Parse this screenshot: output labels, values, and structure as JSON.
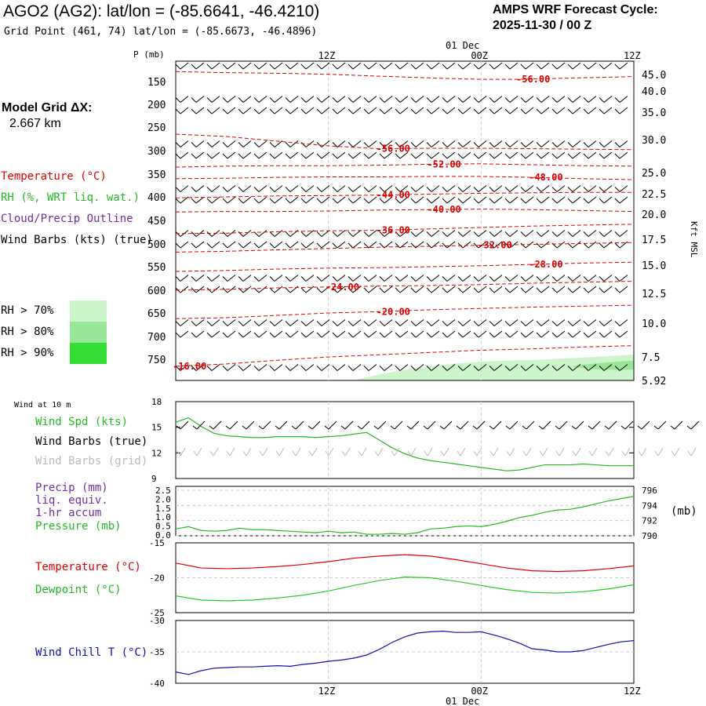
{
  "header": {
    "title": "AGO2 (AG2):  lat/lon = (-85.6641, -46.4210)",
    "subtitle": "Grid Point (461, 74) lat/lon = (-85.6673, -46.4896)",
    "cycle_line1": "AMPS WRF Forecast Cycle:",
    "cycle_line2": "2025-11-30 / 00  Z",
    "grid_dx_line1": "Model Grid ΔX:",
    "grid_dx_line2": "2.667 km"
  },
  "legend": {
    "temperature": "Temperature (°C)",
    "rh": "RH (%, WRT liq. wat.)",
    "cloud": "Cloud/Precip Outline",
    "wind": "Wind Barbs (kts) (true)",
    "rh70": "RH > 70%",
    "rh80": "RH > 80%",
    "rh90": "RH > 90%"
  },
  "colors": {
    "temperature": "#e00000",
    "rh": "#22bb22",
    "cloud": "#7030a0",
    "rh70": "#ccf5cc",
    "rh80": "#99e699",
    "rh90": "#33dd33",
    "dewpoint": "#22cc22",
    "windchill": "#1010aa",
    "grid_barbs": "#bbbbbb"
  },
  "chart_data": [
    {
      "type": "line",
      "id": "upper-air",
      "ylabel": "P (mb)",
      "y2label": "Kft MSL",
      "time_labels": [
        "12Z",
        "00Z",
        "12Z"
      ],
      "date_label": "01 Dec",
      "pressure_ticks": [
        150,
        200,
        250,
        300,
        350,
        400,
        450,
        500,
        550,
        600,
        650,
        700,
        750
      ],
      "height_ticks": [
        "45.0",
        "40.0",
        "35.0",
        "30.0",
        "25.0",
        "22.5",
        "20.0",
        "17.5",
        "15.0",
        "12.5",
        "10.0",
        "7.5",
        "5.92"
      ],
      "isotherm_labels": [
        "-56.00",
        "-56.00",
        "-52.00",
        "-48.00",
        "-44.00",
        "-40.00",
        "-36.00",
        "-32.00",
        "-28.00",
        "-24.00",
        "-20.00",
        "-16.00"
      ],
      "isotherms": [
        {
          "label": "-56.00",
          "x": [
            0,
            3,
            6,
            9,
            12,
            15,
            18,
            21,
            24,
            27,
            30,
            33,
            36
          ],
          "p": [
            128,
            130,
            131,
            132,
            134,
            137,
            140,
            143,
            145,
            145,
            143,
            141,
            139
          ]
        },
        {
          "label": "-56.00",
          "x": [
            0,
            4,
            8,
            12,
            16,
            20,
            24,
            28,
            32,
            36
          ],
          "p": [
            265,
            270,
            280,
            290,
            296,
            295,
            295,
            296,
            297,
            298
          ]
        },
        {
          "label": "-52.00",
          "x": [
            0,
            4,
            8,
            12,
            16,
            20,
            24,
            28,
            32,
            36
          ],
          "p": [
            335,
            333,
            332,
            332,
            331,
            329,
            328,
            330,
            332,
            333
          ]
        },
        {
          "label": "-48.00",
          "x": [
            0,
            4,
            8,
            12,
            16,
            20,
            24,
            28,
            32,
            36
          ],
          "p": [
            360,
            359,
            357,
            356,
            356,
            355,
            355,
            357,
            360,
            362
          ]
        },
        {
          "label": "-44.00",
          "x": [
            0,
            4,
            8,
            12,
            16,
            20,
            24,
            28,
            32,
            36
          ],
          "p": [
            402,
            400,
            398,
            397,
            396,
            394,
            392,
            391,
            390,
            390
          ]
        },
        {
          "label": "-40.00",
          "x": [
            0,
            4,
            8,
            12,
            16,
            20,
            24,
            28,
            32,
            36
          ],
          "p": [
            432,
            431,
            431,
            430,
            428,
            427,
            426,
            427,
            429,
            431
          ]
        },
        {
          "label": "-36.00",
          "x": [
            0,
            4,
            8,
            12,
            16,
            20,
            24,
            28,
            32,
            36
          ],
          "p": [
            478,
            477,
            474,
            472,
            471,
            468,
            465,
            462,
            460,
            458
          ]
        },
        {
          "label": "-32.00",
          "x": [
            0,
            4,
            8,
            12,
            16,
            20,
            24,
            28,
            32,
            36
          ],
          "p": [
            518,
            516,
            513,
            510,
            507,
            505,
            503,
            501,
            499,
            497
          ]
        },
        {
          "label": "-28.00",
          "x": [
            0,
            4,
            8,
            12,
            16,
            20,
            24,
            28,
            32,
            36
          ],
          "p": [
            560,
            558,
            555,
            553,
            552,
            550,
            548,
            545,
            542,
            540
          ]
        },
        {
          "label": "-24.00",
          "x": [
            0,
            4,
            8,
            12,
            16,
            20,
            24,
            28,
            32,
            36
          ],
          "p": [
            600,
            598,
            595,
            593,
            591,
            590,
            588,
            585,
            583,
            581
          ]
        },
        {
          "label": "-20.00",
          "x": [
            0,
            4,
            8,
            12,
            16,
            20,
            24,
            28,
            32,
            36
          ],
          "p": [
            662,
            660,
            655,
            650,
            647,
            643,
            640,
            637,
            635,
            633
          ]
        },
        {
          "label": "-16.00",
          "x": [
            0,
            4,
            8,
            12,
            16,
            20,
            24,
            28,
            32,
            36
          ],
          "p": [
            765,
            760,
            752,
            745,
            740,
            735,
            730,
            727,
            723,
            720
          ]
        }
      ],
      "p_range": [
        120,
        790
      ],
      "x_range": [
        0,
        36
      ]
    },
    {
      "type": "line",
      "id": "wind-10m",
      "title": "Wind at 10 m",
      "labels": [
        "Wind Spd (kts)",
        "Wind Barbs (true)",
        "Wind Barbs (grid)"
      ],
      "y_ticks": [
        9,
        12,
        15,
        18
      ],
      "ylim": [
        9,
        18
      ],
      "x": [
        0,
        1,
        2,
        3,
        4,
        5,
        6,
        7,
        8,
        9,
        10,
        11,
        12,
        13,
        14,
        15,
        16,
        17,
        18,
        19,
        20,
        21,
        22,
        23,
        24,
        25,
        26,
        27,
        28,
        29,
        30,
        31,
        32,
        33,
        34,
        35,
        36
      ],
      "wind_speed": [
        15.6,
        16.1,
        15.1,
        14.3,
        14.0,
        13.9,
        13.8,
        13.8,
        13.9,
        13.9,
        13.9,
        13.8,
        13.9,
        14.0,
        14.2,
        14.4,
        13.5,
        12.6,
        11.9,
        11.4,
        11.1,
        10.9,
        10.7,
        10.5,
        10.3,
        10.1,
        9.9,
        10.0,
        10.3,
        10.6,
        10.6,
        10.6,
        10.7,
        10.6,
        10.5,
        10.5,
        10.5
      ]
    },
    {
      "type": "line",
      "id": "precip-pressure",
      "labels": [
        "Precip (mm)",
        "liq. equiv.",
        "1-hr accum",
        "Pressure (mb)"
      ],
      "precip_ticks": [
        "0.0",
        "0.5",
        "1.0",
        "1.5",
        "2.0",
        "2.5"
      ],
      "pressure_ticks": [
        790,
        792,
        794,
        796
      ],
      "pressure_unit": "(mb)",
      "ylim_pressure": [
        790,
        796
      ],
      "x": [
        0,
        1,
        2,
        3,
        4,
        5,
        6,
        7,
        8,
        9,
        10,
        11,
        12,
        13,
        14,
        15,
        16,
        17,
        18,
        19,
        20,
        21,
        22,
        23,
        24,
        25,
        26,
        27,
        28,
        29,
        30,
        31,
        32,
        33,
        34,
        35,
        36
      ],
      "pressure": [
        790.9,
        791.2,
        790.7,
        790.6,
        790.7,
        791.0,
        790.8,
        790.8,
        790.7,
        790.6,
        790.5,
        790.4,
        790.6,
        790.4,
        790.5,
        790.2,
        790.2,
        790.3,
        790.2,
        790.4,
        790.9,
        791.0,
        791.2,
        791.3,
        791.2,
        791.5,
        791.9,
        792.4,
        792.7,
        793.1,
        793.4,
        793.5,
        793.8,
        794.2,
        794.6,
        794.9,
        795.2
      ],
      "precip": []
    },
    {
      "type": "line",
      "id": "temp-dewpoint",
      "labels": [
        "Temperature (°C)",
        "Dewpoint (°C)"
      ],
      "y_ticks": [
        -15,
        -20,
        -25
      ],
      "ylim": [
        -25,
        -15
      ],
      "x": [
        0,
        2,
        4,
        6,
        8,
        10,
        12,
        14,
        16,
        18,
        20,
        22,
        24,
        26,
        28,
        30,
        32,
        34,
        36
      ],
      "temperature": [
        -17.9,
        -18.6,
        -18.7,
        -18.6,
        -18.4,
        -18.1,
        -17.7,
        -17.2,
        -16.9,
        -16.7,
        -16.9,
        -17.4,
        -18.0,
        -18.6,
        -19.0,
        -19.1,
        -19.0,
        -18.7,
        -18.3
      ],
      "dewpoint": [
        -22.6,
        -23.2,
        -23.3,
        -23.2,
        -22.9,
        -22.5,
        -21.9,
        -21.1,
        -20.4,
        -19.9,
        -20.0,
        -20.5,
        -21.1,
        -21.7,
        -22.1,
        -22.2,
        -22.0,
        -21.6,
        -21.0
      ]
    },
    {
      "type": "line",
      "id": "wind-chill",
      "labels": [
        "Wind Chill T (°C)"
      ],
      "y_ticks": [
        -30,
        -35,
        -40
      ],
      "ylim": [
        -40,
        -30
      ],
      "x": [
        0,
        1,
        2,
        3,
        4,
        5,
        6,
        7,
        8,
        9,
        10,
        11,
        12,
        13,
        14,
        15,
        16,
        17,
        18,
        19,
        20,
        21,
        22,
        23,
        24,
        25,
        26,
        27,
        28,
        29,
        30,
        31,
        32,
        33,
        34,
        35,
        36
      ],
      "wind_chill": [
        -38.2,
        -38.6,
        -38.0,
        -37.6,
        -37.5,
        -37.4,
        -37.4,
        -37.3,
        -37.2,
        -37.3,
        -37.0,
        -36.8,
        -36.5,
        -36.3,
        -36.0,
        -35.5,
        -34.6,
        -33.5,
        -32.6,
        -32.0,
        -31.8,
        -31.7,
        -31.9,
        -31.9,
        -31.8,
        -32.3,
        -32.9,
        -33.6,
        -34.5,
        -34.7,
        -35.0,
        -35.0,
        -34.8,
        -34.3,
        -33.8,
        -33.4,
        -33.2
      ]
    }
  ]
}
